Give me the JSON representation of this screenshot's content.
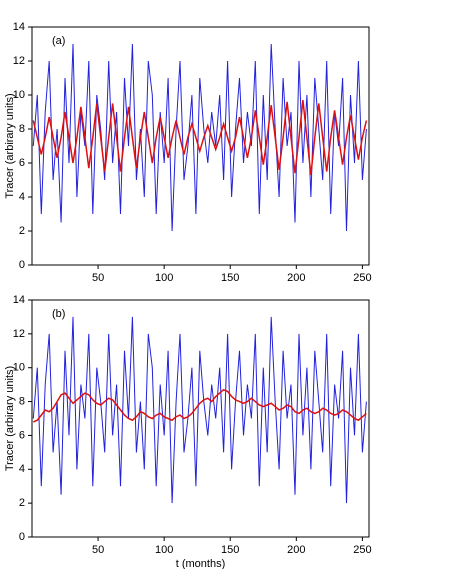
{
  "chart_data": [
    {
      "type": "line",
      "panel_label": "(a)",
      "ylabel": "Tracer (arbirary units)",
      "x": [
        1,
        4,
        7,
        10,
        13,
        16,
        19,
        22,
        25,
        28,
        31,
        34,
        37,
        40,
        43,
        46,
        49,
        52,
        55,
        58,
        61,
        64,
        67,
        70,
        73,
        76,
        79,
        82,
        85,
        88,
        91,
        94,
        97,
        100,
        103,
        106,
        109,
        112,
        115,
        118,
        121,
        124,
        127,
        130,
        133,
        136,
        139,
        142,
        145,
        148,
        151,
        154,
        157,
        160,
        163,
        166,
        169,
        172,
        175,
        178,
        181,
        184,
        187,
        190,
        193,
        196,
        199,
        202,
        205,
        208,
        211,
        214,
        217,
        220,
        223,
        226,
        229,
        232,
        235,
        238,
        241,
        244,
        247,
        250,
        253
      ],
      "xlim": [
        0,
        255
      ],
      "xticks": [
        50,
        100,
        150,
        200,
        250
      ],
      "ylim": [
        0,
        14
      ],
      "yticks": [
        0,
        2,
        4,
        6,
        8,
        10,
        12,
        14
      ],
      "series": [
        {
          "color": "#2222dd",
          "values": [
            7,
            10,
            3,
            9,
            12,
            5,
            8,
            2.5,
            11,
            6,
            13,
            4,
            9,
            7,
            12,
            3,
            10,
            8,
            5,
            12,
            6,
            9,
            3,
            11,
            7,
            13,
            5,
            8,
            4,
            12,
            10,
            3,
            9,
            6,
            11,
            2,
            8,
            12,
            5,
            7,
            10,
            3,
            11,
            8,
            6,
            9,
            7,
            10,
            5,
            12,
            4,
            8,
            11,
            6,
            9,
            7,
            12,
            3,
            10,
            5,
            13,
            8,
            4,
            11,
            7,
            9,
            2.5,
            12,
            6,
            10,
            4,
            11,
            8,
            5,
            12,
            3,
            9,
            7,
            11,
            2,
            10,
            6,
            12,
            5,
            8
          ]
        },
        {
          "color": "#dd1111",
          "values": [
            8.5,
            7.5,
            6.5,
            7.5,
            8.7,
            7.5,
            6.3,
            7.5,
            9,
            7.5,
            6,
            7.5,
            9.3,
            7.5,
            5.7,
            7.5,
            9.5,
            7.5,
            5.5,
            7.5,
            9.5,
            7.5,
            5.5,
            7.5,
            9.3,
            7.5,
            5.7,
            7.5,
            9,
            7.5,
            6,
            7.5,
            8.7,
            7.5,
            6.3,
            7.5,
            8.5,
            7.5,
            6.5,
            7.5,
            8.3,
            7.5,
            6.7,
            7.5,
            8.2,
            7.5,
            6.8,
            7.5,
            8.3,
            7.5,
            6.7,
            7.5,
            8.7,
            7.5,
            6.3,
            7.5,
            9.1,
            7.5,
            5.9,
            7.5,
            9.4,
            7.5,
            5.6,
            7.5,
            9.6,
            7.5,
            5.4,
            7.5,
            9.7,
            7.5,
            5.3,
            7.5,
            9.5,
            7.5,
            5.5,
            7.5,
            9.1,
            7.5,
            5.9,
            7.5,
            8.8,
            7.5,
            6.2,
            7.5,
            8.5
          ]
        }
      ]
    },
    {
      "type": "line",
      "panel_label": "(b)",
      "ylabel": "Tracer (arbirary units)",
      "xlabel": "t (months)",
      "x": [
        1,
        4,
        7,
        10,
        13,
        16,
        19,
        22,
        25,
        28,
        31,
        34,
        37,
        40,
        43,
        46,
        49,
        52,
        55,
        58,
        61,
        64,
        67,
        70,
        73,
        76,
        79,
        82,
        85,
        88,
        91,
        94,
        97,
        100,
        103,
        106,
        109,
        112,
        115,
        118,
        121,
        124,
        127,
        130,
        133,
        136,
        139,
        142,
        145,
        148,
        151,
        154,
        157,
        160,
        163,
        166,
        169,
        172,
        175,
        178,
        181,
        184,
        187,
        190,
        193,
        196,
        199,
        202,
        205,
        208,
        211,
        214,
        217,
        220,
        223,
        226,
        229,
        232,
        235,
        238,
        241,
        244,
        247,
        250,
        253
      ],
      "xlim": [
        0,
        255
      ],
      "xticks": [
        50,
        100,
        150,
        200,
        250
      ],
      "ylim": [
        0,
        14
      ],
      "yticks": [
        0,
        2,
        4,
        6,
        8,
        10,
        12,
        14
      ],
      "series": [
        {
          "color": "#2222dd",
          "values": [
            7,
            10,
            3,
            9,
            12,
            5,
            8,
            2.5,
            11,
            6,
            13,
            4,
            9,
            7,
            12,
            3,
            10,
            8,
            5,
            12,
            6,
            9,
            3,
            11,
            7,
            13,
            5,
            8,
            4,
            12,
            10,
            3,
            9,
            6,
            11,
            2,
            8,
            12,
            5,
            7,
            10,
            3,
            11,
            8,
            6,
            9,
            7,
            10,
            5,
            12,
            4,
            8,
            11,
            6,
            9,
            7,
            12,
            3,
            10,
            5,
            13,
            8,
            4,
            11,
            7,
            9,
            2.5,
            12,
            6,
            10,
            4,
            11,
            8,
            5,
            12,
            3,
            9,
            7,
            11,
            2,
            10,
            6,
            12,
            5,
            8
          ]
        },
        {
          "color": "#dd1111",
          "values": [
            6.8,
            6.9,
            7.2,
            7.5,
            7.4,
            7.6,
            8,
            8.4,
            8.5,
            8.2,
            7.9,
            8.1,
            8.3,
            8.5,
            8.4,
            8.1,
            7.9,
            7.8,
            8,
            8.2,
            8.1,
            7.8,
            7.5,
            7.2,
            7.0,
            6.9,
            7.1,
            7.4,
            7.3,
            7.1,
            7.0,
            7.2,
            7.3,
            7.1,
            7.0,
            6.9,
            7.1,
            7.2,
            7.0,
            7.1,
            7.3,
            7.6,
            7.9,
            8.1,
            8.2,
            8.0,
            8.3,
            8.5,
            8.7,
            8.6,
            8.3,
            8.1,
            8.0,
            7.9,
            8.0,
            8.2,
            8.0,
            7.8,
            7.7,
            7.8,
            7.9,
            7.7,
            7.5,
            7.6,
            7.8,
            7.7,
            7.4,
            7.3,
            7.5,
            7.6,
            7.4,
            7.3,
            7.4,
            7.6,
            7.5,
            7.3,
            7.2,
            7.3,
            7.5,
            7.4,
            7.2,
            7.0,
            6.9,
            7.1,
            7.3
          ]
        }
      ]
    }
  ]
}
